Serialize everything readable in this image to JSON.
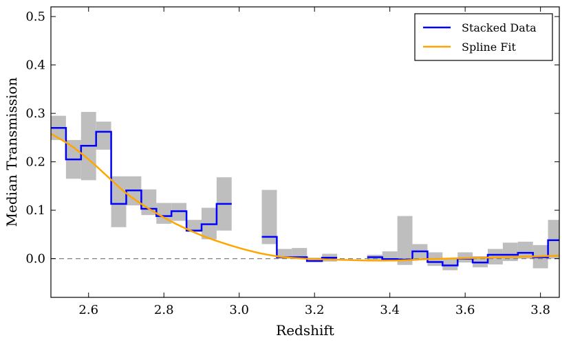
{
  "chart_data": {
    "type": "line",
    "title": "",
    "xlabel": "Redshift",
    "ylabel": "Median Transmission",
    "xlim": [
      2.5,
      3.85
    ],
    "ylim": [
      -0.08,
      0.52
    ],
    "xticks": [
      2.6,
      2.8,
      3.0,
      3.2,
      3.4,
      3.6,
      3.8
    ],
    "xtick_labels": [
      "2.6",
      "2.8",
      "3.0",
      "3.2",
      "3.4",
      "3.6",
      "3.8"
    ],
    "yticks": [
      0.0,
      0.1,
      0.2,
      0.3,
      0.4,
      0.5
    ],
    "ytick_labels": [
      "0.0",
      "0.1",
      "0.2",
      "0.3",
      "0.4",
      "0.5"
    ],
    "reference_line": {
      "y": 0.0,
      "style": "dashed",
      "color": "#808080"
    },
    "legend": {
      "position": "top-right",
      "entries": [
        "Stacked Data",
        "Spline Fit"
      ]
    },
    "colors": {
      "stacked": "#0000ff",
      "spline": "#ffa500",
      "errorband": "#bebebe"
    },
    "stacked_data": {
      "name": "Stacked Data",
      "bins": [
        {
          "x0": 2.5,
          "x1": 2.54,
          "y": 0.27,
          "lo": 0.245,
          "hi": 0.295
        },
        {
          "x0": 2.54,
          "x1": 2.58,
          "y": 0.205,
          "lo": 0.165,
          "hi": 0.245
        },
        {
          "x0": 2.58,
          "x1": 2.62,
          "y": 0.233,
          "lo": 0.162,
          "hi": 0.303
        },
        {
          "x0": 2.62,
          "x1": 2.66,
          "y": 0.262,
          "lo": 0.225,
          "hi": 0.283
        },
        {
          "x0": 2.66,
          "x1": 2.7,
          "y": 0.113,
          "lo": 0.065,
          "hi": 0.17
        },
        {
          "x0": 2.7,
          "x1": 2.74,
          "y": 0.141,
          "lo": 0.11,
          "hi": 0.17
        },
        {
          "x0": 2.74,
          "x1": 2.78,
          "y": 0.103,
          "lo": 0.09,
          "hi": 0.143
        },
        {
          "x0": 2.78,
          "x1": 2.82,
          "y": 0.088,
          "lo": 0.072,
          "hi": 0.115
        },
        {
          "x0": 2.82,
          "x1": 2.86,
          "y": 0.098,
          "lo": 0.078,
          "hi": 0.115
        },
        {
          "x0": 2.86,
          "x1": 2.9,
          "y": 0.058,
          "lo": 0.055,
          "hi": 0.08
        },
        {
          "x0": 2.9,
          "x1": 2.94,
          "y": 0.071,
          "lo": 0.04,
          "hi": 0.105
        },
        {
          "x0": 2.94,
          "x1": 2.98,
          "y": 0.113,
          "lo": 0.058,
          "hi": 0.168
        },
        {
          "x0": 3.06,
          "x1": 3.1,
          "y": 0.045,
          "lo": 0.03,
          "hi": 0.142
        },
        {
          "x0": 3.1,
          "x1": 3.14,
          "y": 0.003,
          "lo": 0.0,
          "hi": 0.02
        },
        {
          "x0": 3.14,
          "x1": 3.18,
          "y": 0.003,
          "lo": 0.0,
          "hi": 0.022
        },
        {
          "x0": 3.18,
          "x1": 3.22,
          "y": -0.005,
          "lo": -0.006,
          "hi": 0.002
        },
        {
          "x0": 3.22,
          "x1": 3.26,
          "y": 0.002,
          "lo": -0.006,
          "hi": 0.01
        },
        {
          "x0": 3.34,
          "x1": 3.38,
          "y": 0.003,
          "lo": -0.002,
          "hi": 0.008
        },
        {
          "x0": 3.38,
          "x1": 3.42,
          "y": -0.001,
          "lo": -0.004,
          "hi": 0.015
        },
        {
          "x0": 3.42,
          "x1": 3.46,
          "y": -0.002,
          "lo": -0.013,
          "hi": 0.088
        },
        {
          "x0": 3.46,
          "x1": 3.5,
          "y": 0.015,
          "lo": 0.0,
          "hi": 0.03
        },
        {
          "x0": 3.5,
          "x1": 3.54,
          "y": -0.007,
          "lo": -0.015,
          "hi": 0.013
        },
        {
          "x0": 3.54,
          "x1": 3.58,
          "y": -0.014,
          "lo": -0.024,
          "hi": 0.0
        },
        {
          "x0": 3.58,
          "x1": 3.62,
          "y": 0.0,
          "lo": -0.008,
          "hi": 0.013
        },
        {
          "x0": 3.62,
          "x1": 3.66,
          "y": -0.008,
          "lo": -0.018,
          "hi": 0.005
        },
        {
          "x0": 3.66,
          "x1": 3.7,
          "y": 0.008,
          "lo": -0.012,
          "hi": 0.02
        },
        {
          "x0": 3.7,
          "x1": 3.74,
          "y": 0.008,
          "lo": -0.005,
          "hi": 0.033
        },
        {
          "x0": 3.74,
          "x1": 3.78,
          "y": 0.012,
          "lo": 0.0,
          "hi": 0.035
        },
        {
          "x0": 3.78,
          "x1": 3.82,
          "y": 0.003,
          "lo": -0.02,
          "hi": 0.028
        },
        {
          "x0": 3.82,
          "x1": 3.85,
          "y": 0.038,
          "lo": 0.0,
          "hi": 0.08
        }
      ]
    },
    "spline_fit": {
      "name": "Spline Fit",
      "x": [
        2.5,
        2.55,
        2.6,
        2.65,
        2.7,
        2.75,
        2.8,
        2.85,
        2.9,
        2.95,
        3.0,
        3.05,
        3.1,
        3.15,
        3.2,
        3.25,
        3.3,
        3.35,
        3.4,
        3.45,
        3.5,
        3.55,
        3.6,
        3.65,
        3.7,
        3.75,
        3.8,
        3.85
      ],
      "y": [
        0.258,
        0.235,
        0.205,
        0.17,
        0.135,
        0.108,
        0.085,
        0.065,
        0.048,
        0.034,
        0.022,
        0.012,
        0.005,
        0.001,
        -0.001,
        -0.002,
        -0.003,
        -0.004,
        -0.004,
        -0.003,
        -0.001,
        0.0,
        0.001,
        0.002,
        0.003,
        0.004,
        0.005,
        0.006
      ]
    }
  }
}
